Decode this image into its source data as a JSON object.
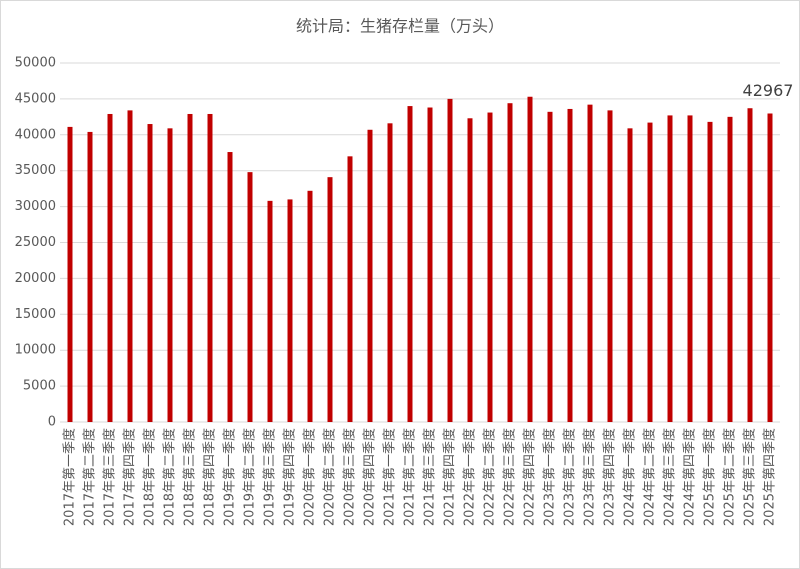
{
  "chart_data": {
    "type": "bar",
    "title": "统计局：生猪存栏量（万头）",
    "categories": [
      "2017年第一季度",
      "2017年第二季度",
      "2017年第三季度",
      "2017年第四季度",
      "2018年第一季度",
      "2018年第二季度",
      "2018年第三季度",
      "2018年第四季度",
      "2019年第一季度",
      "2019年第二季度",
      "2019年第三季度",
      "2019年第四季度",
      "2020年第一季度",
      "2020年第二季度",
      "2020年第三季度",
      "2020年第四季度",
      "2021年第一季度",
      "2021年第二季度",
      "2021年第三季度",
      "2021年第四季度",
      "2022年第一季度",
      "2022年第二季度",
      "2022年第三季度",
      "2022年第四季度",
      "2023年第一季度",
      "2023年第二季度",
      "2023年第三季度",
      "2023年第四季度",
      "2024年第一季度",
      "2024年第二季度",
      "2024年第三季度",
      "2024年第四季度",
      "2025年第一季度",
      "2025年第二季度",
      "2025年第三季度",
      "2025年第四季度"
    ],
    "values": [
      41100,
      40400,
      42900,
      43400,
      41500,
      40900,
      42900,
      42900,
      37600,
      34800,
      30800,
      31000,
      32200,
      34100,
      37000,
      40700,
      41600,
      44000,
      43800,
      45000,
      42300,
      43100,
      44400,
      45300,
      43200,
      43600,
      44200,
      43400,
      40900,
      41700,
      42700,
      42700,
      41800,
      42500,
      43700,
      42967
    ],
    "value_labels": [
      null,
      null,
      null,
      null,
      null,
      null,
      null,
      null,
      null,
      null,
      null,
      null,
      null,
      null,
      null,
      null,
      null,
      null,
      null,
      null,
      null,
      null,
      null,
      null,
      null,
      null,
      null,
      null,
      null,
      null,
      null,
      null,
      null,
      null,
      null,
      "42967"
    ],
    "color": "#c00000",
    "ylim": [
      0,
      50000
    ],
    "yticks": [
      0,
      5000,
      10000,
      15000,
      20000,
      25000,
      30000,
      35000,
      40000,
      45000,
      50000
    ],
    "grid": true
  }
}
